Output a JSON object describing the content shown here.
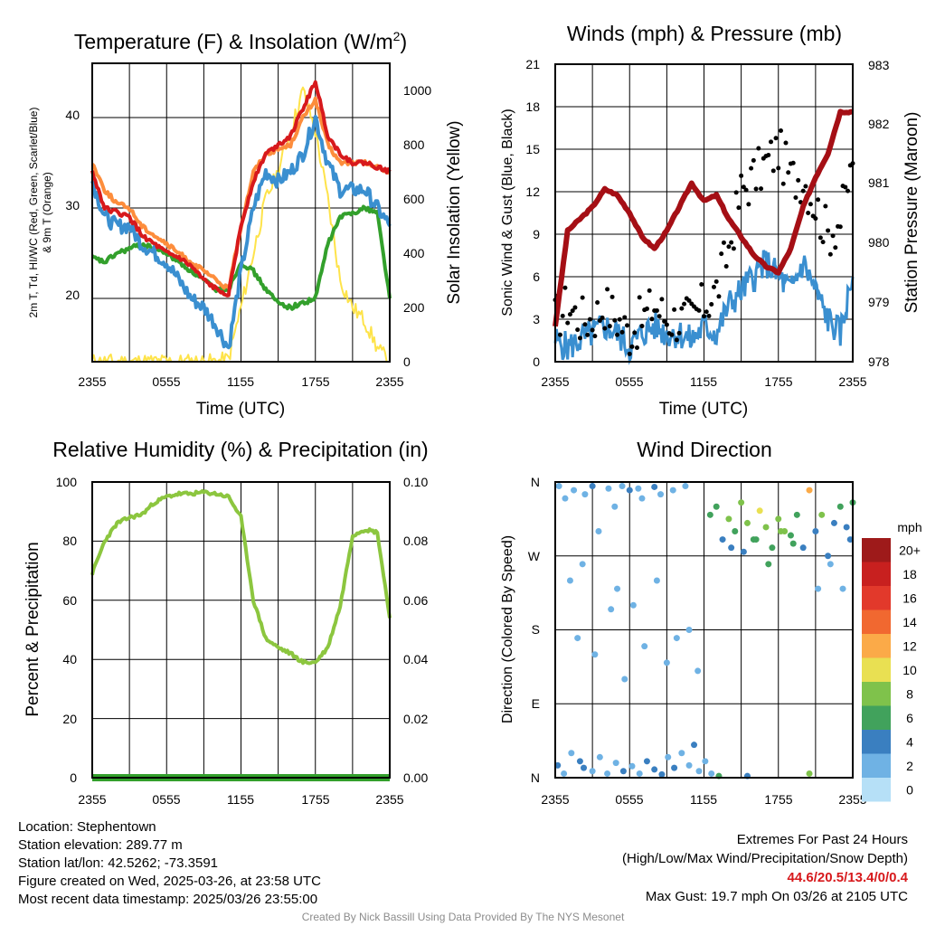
{
  "colors": {
    "t2m": "#d7191c",
    "td": "#33a02c",
    "hiwc": "#3a8fd0",
    "t9m": "#fd8d3c",
    "solar": "#fee34a",
    "wind": "#3a8fd0",
    "gust": "#000000",
    "pressure": "#a50f15",
    "rh": "#8cc63f",
    "precip": "#33a02c"
  },
  "panels": {
    "temp": {
      "title_main": "Temperature (F) & Insolation (W/m",
      "title_sup": "2",
      "title_end": ")",
      "ylabel_left_lines": [
        "2m T, Td, HI/WC (Red, Green, Scarlet/Blue)",
        "& 9m T (Orange)"
      ],
      "ylabel_right": "Solar Insolation (Yellow)",
      "xlabel": "Time (UTC)",
      "y_ticks_left": [
        "20",
        "30",
        "40"
      ],
      "y_ticks_right": [
        "0",
        "200",
        "400",
        "600",
        "800",
        "1000"
      ]
    },
    "wind": {
      "title": "Winds (mph) & Pressure (mb)",
      "ylabel_left": "Sonic Wind & Gust (Blue, Black)",
      "ylabel_right": "Station Pressure (Maroon)",
      "xlabel": "Time (UTC)",
      "y_ticks_left": [
        "0",
        "3",
        "6",
        "9",
        "12",
        "15",
        "18",
        "21"
      ],
      "y_ticks_right": [
        "978",
        "979",
        "980",
        "981",
        "982",
        "983"
      ]
    },
    "rh": {
      "title": "Relative Humidity (%) & Precipitation (in)",
      "ylabel_left": "Percent & Precipitation",
      "y_ticks_left": [
        "0",
        "20",
        "40",
        "60",
        "80",
        "100"
      ],
      "y_ticks_right": [
        "0.00",
        "0.02",
        "0.04",
        "0.06",
        "0.08",
        "0.10"
      ]
    },
    "dir": {
      "title": "Wind Direction",
      "ylabel_left": "Direction (Colored By Speed)",
      "y_ticks_left": [
        "N",
        "E",
        "S",
        "W",
        "N"
      ],
      "legend_title": "mph",
      "legend_labels": [
        "20+",
        "18",
        "16",
        "14",
        "12",
        "10",
        "8",
        "6",
        "4",
        "2",
        "0"
      ],
      "legend_colors": [
        "#9e1a1a",
        "#c8201f",
        "#e2392b",
        "#f16830",
        "#fbaa48",
        "#e9e052",
        "#7fc24b",
        "#41a25c",
        "#3a7fc0",
        "#6fb2e4",
        "#b6e0f7"
      ]
    }
  },
  "x_ticks": [
    "2355",
    "0555",
    "1155",
    "1755",
    "2355"
  ],
  "chart_data": [
    {
      "type": "line",
      "title": "Temperature (F) & Insolation (W/m2)",
      "xlabel": "Time (UTC)",
      "x_hours": [
        0,
        1,
        2,
        3,
        4,
        5,
        6,
        7,
        8,
        9,
        10,
        11,
        12,
        13,
        14,
        15,
        16,
        17,
        18,
        19,
        20,
        21,
        22,
        23,
        24
      ],
      "ylim": [
        13,
        46
      ],
      "ylim_right": [
        0,
        1100
      ],
      "series": [
        {
          "name": "2m T",
          "axis": "left",
          "values": [
            34,
            30,
            29.5,
            29,
            27,
            26,
            25,
            24.5,
            23.5,
            22,
            21,
            20.5,
            28,
            33,
            36,
            37,
            38,
            41,
            44,
            38,
            36,
            35,
            35,
            34.5,
            34
          ]
        },
        {
          "name": "Td",
          "axis": "left",
          "values": [
            24.5,
            24,
            25,
            25.5,
            26,
            25.5,
            25,
            24,
            23,
            22,
            21,
            21,
            24,
            23,
            21,
            19.5,
            19,
            19.5,
            20,
            26,
            29,
            29.5,
            30,
            29.5,
            20
          ]
        },
        {
          "name": "HI/WC",
          "axis": "left",
          "values": [
            33,
            29,
            28,
            28,
            26,
            25,
            24,
            22,
            20,
            19,
            17,
            14.5,
            23,
            30,
            34,
            33,
            34,
            36,
            40,
            35,
            32,
            32,
            32,
            30,
            28
          ]
        },
        {
          "name": "9m T",
          "axis": "left",
          "values": [
            35,
            32,
            30.5,
            30,
            28,
            27,
            26,
            25,
            24,
            23,
            22,
            21,
            28,
            34,
            36,
            36.5,
            37,
            40,
            42,
            37,
            35,
            35,
            35,
            34.5,
            34
          ]
        },
        {
          "name": "Solar",
          "axis": "right",
          "values": [
            0,
            0,
            0,
            0,
            0,
            0,
            0,
            0,
            0,
            0,
            0,
            10,
            200,
            400,
            600,
            700,
            850,
            1000,
            850,
            600,
            300,
            200,
            150,
            50,
            0
          ]
        }
      ]
    },
    {
      "type": "line",
      "title": "Winds (mph) & Pressure (mb)",
      "xlabel": "Time (UTC)",
      "x_hours": [
        0,
        1,
        2,
        3,
        4,
        5,
        6,
        7,
        8,
        9,
        10,
        11,
        12,
        13,
        14,
        15,
        16,
        17,
        18,
        19,
        20,
        21,
        22,
        23,
        24
      ],
      "ylim": [
        0,
        21
      ],
      "ylim_right": [
        978,
        983
      ],
      "series": [
        {
          "name": "Sonic Wind",
          "axis": "left",
          "values": [
            1.5,
            1,
            1.5,
            2,
            2.5,
            2,
            1,
            2,
            2.5,
            2,
            2,
            1.5,
            2.5,
            2,
            4,
            5,
            6,
            7,
            6,
            5,
            7,
            5,
            3,
            2,
            6
          ]
        },
        {
          "name": "Gust",
          "axis": "left",
          "values": [
            3,
            4,
            3,
            3,
            4,
            3,
            2,
            3,
            4,
            3,
            3,
            3,
            4,
            5,
            8,
            12,
            13,
            14,
            15,
            13,
            13,
            11,
            9,
            10,
            14
          ]
        },
        {
          "name": "Station Pressure",
          "axis": "right",
          "values": [
            978.6,
            980.2,
            980.4,
            980.6,
            980.9,
            980.8,
            980.5,
            980.1,
            979.9,
            980.2,
            980.6,
            981.0,
            980.7,
            980.8,
            980.4,
            980.1,
            979.8,
            979.6,
            979.5,
            979.9,
            980.6,
            981.1,
            981.5,
            982.2,
            982.2
          ]
        }
      ]
    },
    {
      "type": "line",
      "title": "Relative Humidity (%) & Precipitation (in)",
      "x_hours": [
        0,
        1,
        2,
        3,
        4,
        5,
        6,
        7,
        8,
        9,
        10,
        11,
        12,
        13,
        14,
        15,
        16,
        17,
        18,
        19,
        20,
        21,
        22,
        23,
        24
      ],
      "ylim": [
        0,
        100
      ],
      "ylim_right": [
        0,
        0.1
      ],
      "series": [
        {
          "name": "Relative Humidity",
          "axis": "left",
          "values": [
            69,
            80,
            86,
            88,
            89,
            93,
            95,
            96,
            96,
            96.5,
            96,
            95,
            88,
            60,
            47,
            44,
            42,
            39,
            39,
            44,
            58,
            82,
            84,
            83,
            54
          ]
        },
        {
          "name": "Precipitation",
          "axis": "right",
          "values": [
            0,
            0,
            0,
            0,
            0,
            0,
            0,
            0,
            0,
            0,
            0,
            0,
            0,
            0,
            0,
            0,
            0,
            0,
            0,
            0,
            0,
            0,
            0,
            0,
            0
          ]
        }
      ]
    },
    {
      "type": "scatter",
      "title": "Wind Direction",
      "ylabel": "Direction (Colored By Speed)",
      "y_categories": [
        "N",
        "E",
        "S",
        "W",
        "N"
      ],
      "ylim": [
        0,
        360
      ],
      "points": [
        [
          0.3,
          355,
          2
        ],
        [
          0.8,
          340,
          1
        ],
        [
          1.5,
          350,
          2
        ],
        [
          2.4,
          345,
          1
        ],
        [
          3.0,
          355,
          3
        ],
        [
          3.5,
          300,
          1
        ],
        [
          4.3,
          352,
          2
        ],
        [
          4.8,
          330,
          1
        ],
        [
          5.4,
          355,
          2
        ],
        [
          6.0,
          350,
          3
        ],
        [
          6.7,
          352,
          2
        ],
        [
          7.0,
          340,
          1
        ],
        [
          8.0,
          354,
          3
        ],
        [
          8.5,
          345,
          2
        ],
        [
          9.5,
          350,
          1
        ],
        [
          10.5,
          355,
          2
        ],
        [
          1.2,
          240,
          1
        ],
        [
          1.8,
          170,
          2
        ],
        [
          2.2,
          260,
          1
        ],
        [
          3.2,
          150,
          1
        ],
        [
          4.5,
          205,
          2
        ],
        [
          5.0,
          230,
          1
        ],
        [
          5.6,
          120,
          1
        ],
        [
          6.3,
          210,
          1
        ],
        [
          7.2,
          160,
          2
        ],
        [
          8.2,
          240,
          1
        ],
        [
          9.0,
          140,
          1
        ],
        [
          9.8,
          170,
          2
        ],
        [
          10.8,
          180,
          1
        ],
        [
          11.5,
          130,
          1
        ],
        [
          0.2,
          15,
          3
        ],
        [
          0.7,
          5,
          2
        ],
        [
          1.3,
          30,
          2
        ],
        [
          2.0,
          20,
          3
        ],
        [
          2.3,
          12,
          4
        ],
        [
          3.0,
          8,
          2
        ],
        [
          3.6,
          25,
          2
        ],
        [
          4.2,
          5,
          1
        ],
        [
          4.9,
          18,
          2
        ],
        [
          5.5,
          8,
          3
        ],
        [
          6.2,
          14,
          2
        ],
        [
          6.8,
          5,
          2
        ],
        [
          7.4,
          20,
          3
        ],
        [
          8.0,
          10,
          4
        ],
        [
          8.6,
          4,
          3
        ],
        [
          9.1,
          25,
          2
        ],
        [
          9.6,
          12,
          3
        ],
        [
          10.2,
          30,
          2
        ],
        [
          10.8,
          15,
          2
        ],
        [
          11.2,
          40,
          3
        ],
        [
          11.6,
          8,
          2
        ],
        [
          12.1,
          20,
          2
        ],
        [
          12.6,
          5,
          2
        ],
        [
          13.2,
          2,
          6
        ],
        [
          15.5,
          2,
          4
        ],
        [
          20.5,
          5,
          7
        ],
        [
          12.5,
          320,
          6
        ],
        [
          13.0,
          330,
          5
        ],
        [
          13.5,
          290,
          4
        ],
        [
          14.0,
          315,
          7
        ],
        [
          14.5,
          300,
          6
        ],
        [
          15.0,
          335,
          8
        ],
        [
          15.5,
          310,
          7
        ],
        [
          16.0,
          290,
          5
        ],
        [
          16.5,
          325,
          9
        ],
        [
          17.0,
          305,
          8
        ],
        [
          17.5,
          280,
          6
        ],
        [
          18.0,
          315,
          7
        ],
        [
          18.5,
          300,
          8
        ],
        [
          19.0,
          295,
          5
        ],
        [
          19.5,
          320,
          6
        ],
        [
          20.0,
          280,
          4
        ],
        [
          20.5,
          350,
          12
        ],
        [
          21.0,
          300,
          4
        ],
        [
          21.5,
          320,
          7
        ],
        [
          22.0,
          270,
          3
        ],
        [
          22.5,
          310,
          4
        ],
        [
          23.0,
          330,
          5
        ],
        [
          23.5,
          305,
          4
        ],
        [
          24.0,
          335,
          6
        ],
        [
          14.2,
          280,
          3
        ],
        [
          15.2,
          275,
          4
        ],
        [
          16.2,
          290,
          6
        ],
        [
          17.2,
          260,
          5
        ],
        [
          18.2,
          300,
          7
        ],
        [
          19.2,
          285,
          6
        ],
        [
          21.2,
          230,
          2
        ],
        [
          22.2,
          260,
          2
        ],
        [
          23.2,
          230,
          2
        ],
        [
          23.8,
          290,
          3
        ]
      ]
    }
  ],
  "footer": {
    "location": "Location: Stephentown",
    "elevation": "Station elevation: 289.77 m",
    "latlon": "Station lat/lon: 42.5262; -73.3591",
    "created": "Figure created on Wed, 2025-03-26, at 23:58 UTC",
    "recent": "Most recent data timestamp: 2025/03/26 23:55:00",
    "extremes_title": "Extremes For Past 24 Hours",
    "extremes_sub": "(High/Low/Max Wind/Precipitation/Snow Depth)",
    "extremes_values": "44.6/20.5/13.4/0/0.4",
    "max_gust": "Max Gust: 19.7 mph On 03/26 at 2105 UTC",
    "credit": "Created By Nick Bassill Using Data Provided By The NYS Mesonet"
  }
}
